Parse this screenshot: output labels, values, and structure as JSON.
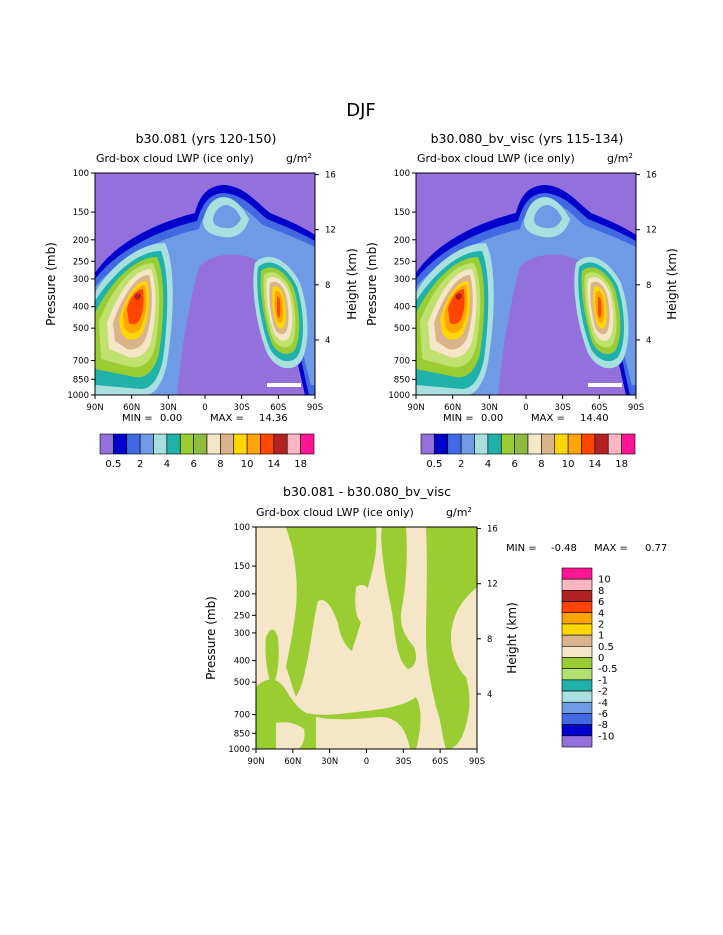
{
  "page_title": "DJF",
  "chart_data": [
    {
      "type": "contour",
      "title": "b30.081 (yrs 120-150)",
      "variable": "Grd-box cloud LWP (ice only)",
      "units": "g/m",
      "units_sup": "2",
      "xlabel": "",
      "ylabel": "Pressure (mb)",
      "ylabel_right": "Height (km)",
      "x_ticks": [
        "90N",
        "60N",
        "30N",
        "0",
        "30S",
        "60S",
        "90S"
      ],
      "y_ticks": [
        "100",
        "150",
        "200",
        "250",
        "300",
        "400",
        "500",
        "700",
        "850",
        "1000"
      ],
      "y_right_ticks": [
        "16",
        "12",
        "8",
        "4"
      ],
      "min_label": "MIN =",
      "min_value": "0.00",
      "max_label": "MAX =",
      "max_value": "14.36",
      "min": 0.0,
      "max": 14.36,
      "colorbar_labels": [
        "0.5",
        "2",
        "4",
        "6",
        "8",
        "10",
        "14",
        "18"
      ]
    },
    {
      "type": "contour",
      "title": "b30.080_bv_visc (yrs 115-134)",
      "variable": "Grd-box cloud LWP (ice only)",
      "units": "g/m",
      "units_sup": "2",
      "xlabel": "",
      "ylabel": "Pressure (mb)",
      "ylabel_right": "Height (km)",
      "x_ticks": [
        "90N",
        "60N",
        "30N",
        "0",
        "30S",
        "60S",
        "90S"
      ],
      "y_ticks": [
        "100",
        "150",
        "200",
        "250",
        "300",
        "400",
        "500",
        "700",
        "850",
        "1000"
      ],
      "y_right_ticks": [
        "16",
        "12",
        "8",
        "4"
      ],
      "min_label": "MIN =",
      "min_value": "0.00",
      "max_label": "MAX =",
      "max_value": "14.40",
      "min": 0.0,
      "max": 14.4,
      "colorbar_labels": [
        "0.5",
        "2",
        "4",
        "6",
        "8",
        "10",
        "14",
        "18"
      ]
    },
    {
      "type": "contour",
      "title": "b30.081 - b30.080_bv_visc",
      "variable": "Grd-box cloud LWP (ice only)",
      "units": "g/m",
      "units_sup": "2",
      "xlabel": "",
      "ylabel": "Pressure (mb)",
      "ylabel_right": "Height (km)",
      "x_ticks": [
        "90N",
        "60N",
        "30N",
        "0",
        "30S",
        "60S",
        "90S"
      ],
      "y_ticks": [
        "100",
        "150",
        "200",
        "250",
        "300",
        "400",
        "500",
        "700",
        "850",
        "1000"
      ],
      "y_right_ticks": [
        "16",
        "12",
        "8",
        "4"
      ],
      "min_label": "MIN =",
      "min_value": "-0.48",
      "max_label": "MAX =",
      "max_value": "0.77",
      "min": -0.48,
      "max": 0.77,
      "colorbar_labels": [
        "10",
        "8",
        "6",
        "4",
        "2",
        "1",
        "0.5",
        "0",
        "-0.5",
        "-1",
        "-2",
        "-4",
        "-6",
        "-8",
        "-10"
      ]
    }
  ],
  "colors": {
    "abs_scale": [
      "#9370db",
      "#0000cd",
      "#4169e1",
      "#6f9ae6",
      "#a8e0e0",
      "#20b2aa",
      "#9acd32",
      "#8fbc3f",
      "#f5e6c8",
      "#d9b38c",
      "#ffd700",
      "#ffa500",
      "#ff4500",
      "#b22222",
      "#ffb6c1",
      "#ff1493"
    ],
    "diff_scale": [
      "#ff1493",
      "#ffb6c1",
      "#b22222",
      "#ff4500",
      "#ffa500",
      "#ffd700",
      "#d9b38c",
      "#f5e6c8",
      "#9acd32",
      "#b0e070",
      "#20b2aa",
      "#a8e0e0",
      "#6f9ae6",
      "#4169e1",
      "#0000cd",
      "#9370db"
    ],
    "background": "#9370db",
    "diff_background": "#f5e6c8",
    "diff_patch": "#9acd32"
  }
}
